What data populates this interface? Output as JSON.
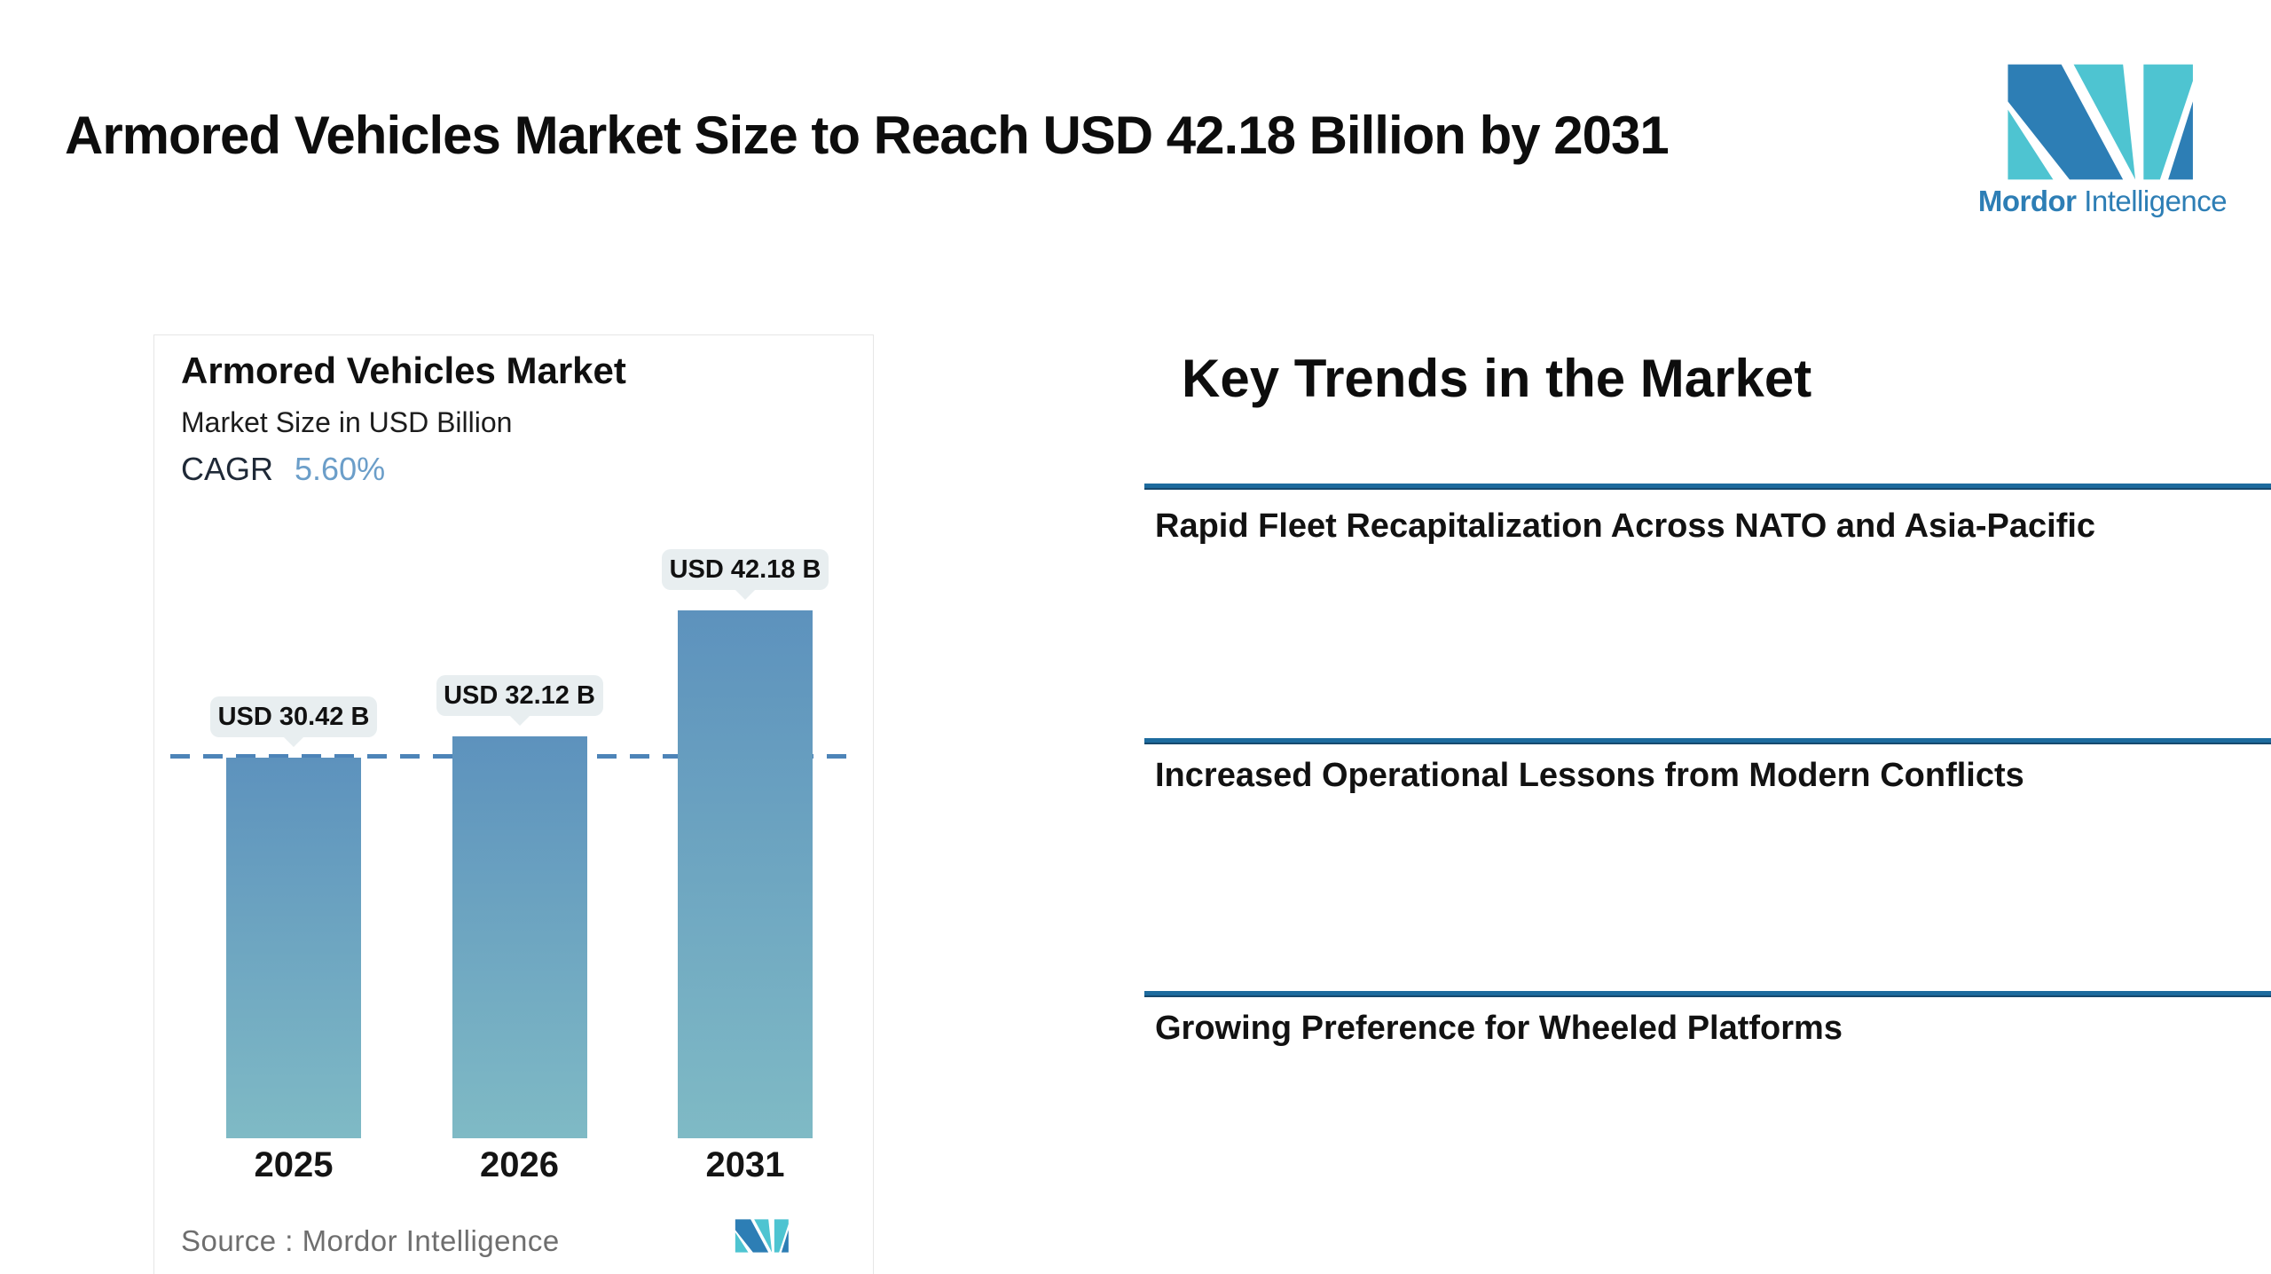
{
  "page_title": "Armored Vehicles Market Size to Reach USD 42.18 Billion by 2031",
  "brand": {
    "name_bold": "Mordor",
    "name_light": "Intelligence",
    "logo_blue": "#2d7eb5",
    "logo_teal": "#4ec4d1"
  },
  "chart_card": {
    "title": "Armored Vehicles Market",
    "subtitle": "Market Size in USD Billion",
    "cagr_label": "CAGR",
    "cagr_value": "5.60%",
    "cagr_value_color": "#6b9ec9",
    "source_text": "Source :  Mordor Intelligence"
  },
  "chart_data": {
    "type": "bar",
    "categories": [
      "2025",
      "2026",
      "2031"
    ],
    "values": [
      30.42,
      32.12,
      42.18
    ],
    "bar_labels": [
      "USD 30.42 B",
      "USD 32.12 B",
      "USD 42.18 B"
    ],
    "title": "Armored Vehicles Market",
    "ylabel": "Market Size in USD Billion",
    "cagr": "5.60%",
    "ylim": [
      0,
      45
    ],
    "reference_line_value": 30.42,
    "reference_line_style": "dashed",
    "grid": "off",
    "legend": "none",
    "bar_color_top": "#5d92bd",
    "bar_color_bottom": "#7fbac5",
    "dashed_line_color": "#4d84b8",
    "label_bubble_color": "#e8eef0"
  },
  "key_trends": {
    "heading": "Key Trends in the Market",
    "divider_color": "#1d6b9e",
    "items": [
      "Rapid Fleet Recapitalization Across NATO and Asia-Pacific",
      "Increased Operational Lessons from Modern Conflicts",
      "Growing Preference for Wheeled Platforms"
    ]
  }
}
